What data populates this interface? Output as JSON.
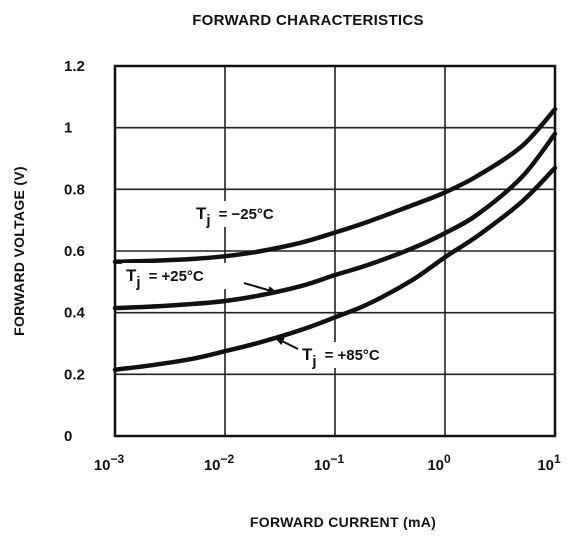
{
  "chart_data": {
    "type": "line",
    "title": "FORWARD CHARACTERISTICS",
    "xlabel": "FORWARD CURRENT (mA)",
    "ylabel": "FORWARD VOLTAGE (V)",
    "x_scale": "log",
    "xlim": [
      0.001,
      10
    ],
    "ylim": [
      0,
      1.2
    ],
    "grid": true,
    "x_ticks": [
      {
        "value": 0.001,
        "base": "10",
        "exp": "−3"
      },
      {
        "value": 0.01,
        "base": "10",
        "exp": "−2"
      },
      {
        "value": 0.1,
        "base": "10",
        "exp": "−1"
      },
      {
        "value": 1,
        "base": "10",
        "exp": "0"
      },
      {
        "value": 10,
        "base": "10",
        "exp": "1"
      }
    ],
    "y_ticks": [
      {
        "value": 0,
        "label": "0"
      },
      {
        "value": 0.2,
        "label": "0.2"
      },
      {
        "value": 0.4,
        "label": "0.4"
      },
      {
        "value": 0.6,
        "label": "0.6"
      },
      {
        "value": 0.8,
        "label": "0.8"
      },
      {
        "value": 1.0,
        "label": "1"
      },
      {
        "value": 1.2,
        "label": "1.2"
      }
    ],
    "series": [
      {
        "name": "Tj = −25°C",
        "label_main": "T",
        "label_sub": "j",
        "label_rest": "=  −25°C",
        "x": [
          0.001,
          0.002,
          0.005,
          0.01,
          0.02,
          0.05,
          0.1,
          0.2,
          0.5,
          1,
          2,
          5,
          10
        ],
        "y": [
          0.565,
          0.568,
          0.574,
          0.583,
          0.598,
          0.628,
          0.66,
          0.695,
          0.748,
          0.79,
          0.845,
          0.94,
          1.06
        ]
      },
      {
        "name": "Tj = +25°C",
        "label_main": "T",
        "label_sub": "j",
        "label_rest": "=  +25°C",
        "x": [
          0.001,
          0.002,
          0.005,
          0.01,
          0.02,
          0.05,
          0.1,
          0.2,
          0.5,
          1,
          2,
          5,
          10
        ],
        "y": [
          0.415,
          0.419,
          0.428,
          0.438,
          0.455,
          0.487,
          0.522,
          0.555,
          0.608,
          0.658,
          0.72,
          0.84,
          0.98
        ]
      },
      {
        "name": "Tj = +85°C",
        "label_main": "T",
        "label_sub": "j",
        "label_rest": "=  +85°C",
        "x": [
          0.001,
          0.002,
          0.005,
          0.01,
          0.02,
          0.05,
          0.1,
          0.2,
          0.5,
          1,
          2,
          5,
          10
        ],
        "y": [
          0.215,
          0.228,
          0.25,
          0.275,
          0.302,
          0.345,
          0.385,
          0.428,
          0.505,
          0.58,
          0.65,
          0.76,
          0.87
        ]
      }
    ]
  }
}
